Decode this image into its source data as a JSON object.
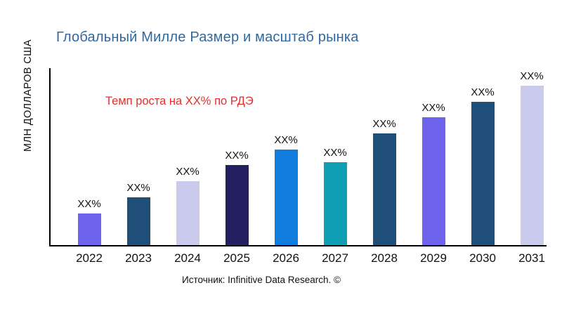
{
  "page": {
    "title": "Глобальный Милле Размер и масштаб рынка",
    "title_color": "#31689E",
    "y_axis_label": "МЛН ДОЛЛАРОВ США",
    "annotation": "Темп роста на XX% по РДЭ",
    "annotation_color": "#E3302C",
    "source": "Источник: Infinitive Data Research. ©"
  },
  "chart_data": {
    "type": "bar",
    "title": "Глобальный Милле Размер и масштаб рынка",
    "xlabel": "",
    "ylabel": "МЛН ДОЛЛАРОВ США",
    "categories": [
      "2022",
      "2023",
      "2024",
      "2025",
      "2026",
      "2027",
      "2028",
      "2029",
      "2030",
      "2031"
    ],
    "data_labels": [
      "XX%",
      "XX%",
      "XX%",
      "XX%",
      "XX%",
      "XX%",
      "XX%",
      "XX%",
      "XX%",
      "XX%"
    ],
    "values_note": "numeric values masked as XX% in source image; relative bar heights estimated as percent of tallest bar",
    "relative_heights": [
      20,
      30,
      40,
      50,
      60,
      52,
      70,
      80,
      90,
      100
    ],
    "bar_colors": [
      "#6E63ED",
      "#1F4E79",
      "#C9CAEC",
      "#23205F",
      "#107CDE",
      "#0F9FB5",
      "#1F4E79",
      "#6E63ED",
      "#1F4E79",
      "#C9CAEC"
    ],
    "annotation": "Темп роста на XX% по РДЭ",
    "source": "Источник: Infinitive Data Research. ©",
    "grid": false,
    "legend": false,
    "axis_color": "#000000"
  }
}
